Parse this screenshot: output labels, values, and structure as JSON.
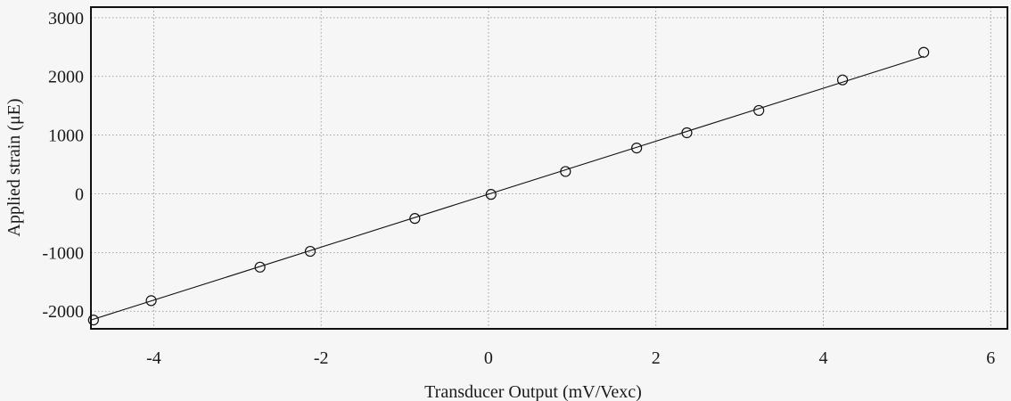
{
  "chart_data": {
    "type": "scatter",
    "xlabel": "Transducer Output (mV/Vexc)",
    "ylabel": "Applied strain (μE)",
    "xlim": [
      -4.75,
      6.2
    ],
    "ylim": [
      -2300,
      3180
    ],
    "xticks": [
      -4,
      -2,
      0,
      2,
      4,
      6
    ],
    "xtick_labels": [
      "-4",
      "-2",
      "0",
      "2",
      "4",
      "6"
    ],
    "yticks": [
      -2000,
      -1000,
      0,
      1000,
      2000,
      3000
    ],
    "ytick_labels": [
      "-2000",
      "-1000",
      "0",
      "1000",
      "2000",
      "3000"
    ],
    "grid": true,
    "series": [
      {
        "marker": "open-circle",
        "x": [
          -4.72,
          -4.03,
          -2.73,
          -2.13,
          -0.88,
          0.03,
          0.92,
          1.77,
          2.37,
          3.23,
          4.23,
          5.2
        ],
        "y": [
          -2150,
          -1820,
          -1250,
          -980,
          -420,
          -10,
          380,
          780,
          1040,
          1420,
          1940,
          2410
        ]
      }
    ],
    "fit_line": {
      "x": [
        -4.75,
        5.2
      ],
      "y": [
        -2150,
        2340
      ]
    },
    "colors": {
      "ink": "#111111",
      "grid": "#8a8a8a",
      "background": "#f7f6f7"
    }
  }
}
